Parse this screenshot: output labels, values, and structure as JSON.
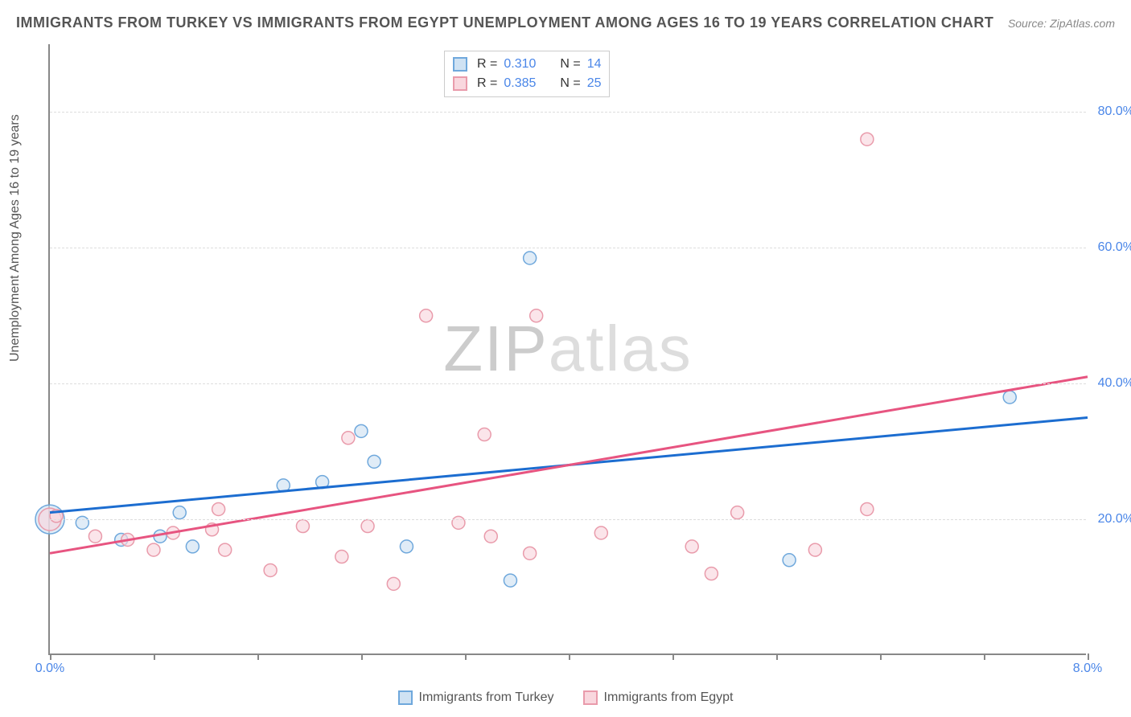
{
  "title": "IMMIGRANTS FROM TURKEY VS IMMIGRANTS FROM EGYPT UNEMPLOYMENT AMONG AGES 16 TO 19 YEARS CORRELATION CHART",
  "source": "Source: ZipAtlas.com",
  "y_axis_label": "Unemployment Among Ages 16 to 19 years",
  "watermark_a": "ZIP",
  "watermark_b": "atlas",
  "chart": {
    "type": "scatter-correlation",
    "background_color": "#ffffff",
    "grid_color": "#dddddd",
    "axis_color": "#888888",
    "tick_label_color": "#4a86e8",
    "xlim": [
      0.0,
      8.0
    ],
    "ylim": [
      0.0,
      90.0
    ],
    "x_ticks": [
      0.0,
      0.8,
      1.6,
      2.4,
      3.2,
      4.0,
      4.8,
      5.6,
      6.4,
      7.2,
      8.0
    ],
    "x_tick_labels": {
      "0": "0.0%",
      "10": "8.0%"
    },
    "y_gridlines": [
      20.0,
      40.0,
      60.0,
      80.0
    ],
    "y_tick_labels": [
      "20.0%",
      "40.0%",
      "60.0%",
      "80.0%"
    ],
    "series": [
      {
        "name": "Immigrants from Turkey",
        "color_fill": "#cfe2f3",
        "color_stroke": "#6fa8dc",
        "swatch_fill": "#cfe2f3",
        "swatch_border": "#6fa8dc",
        "line_color": "#1c6dd0",
        "r": "0.310",
        "n": "14",
        "trend": {
          "x1": 0.0,
          "y1": 21.0,
          "x2": 8.0,
          "y2": 35.0
        },
        "points": [
          {
            "x": 0.0,
            "y": 20.0,
            "r": 18
          },
          {
            "x": 0.25,
            "y": 19.5,
            "r": 8
          },
          {
            "x": 0.55,
            "y": 17.0,
            "r": 8
          },
          {
            "x": 0.85,
            "y": 17.5,
            "r": 8
          },
          {
            "x": 1.0,
            "y": 21.0,
            "r": 8
          },
          {
            "x": 1.1,
            "y": 16.0,
            "r": 8
          },
          {
            "x": 1.8,
            "y": 25.0,
            "r": 8
          },
          {
            "x": 2.1,
            "y": 25.5,
            "r": 8
          },
          {
            "x": 2.4,
            "y": 33.0,
            "r": 8
          },
          {
            "x": 2.5,
            "y": 28.5,
            "r": 8
          },
          {
            "x": 2.75,
            "y": 16.0,
            "r": 8
          },
          {
            "x": 3.55,
            "y": 11.0,
            "r": 8
          },
          {
            "x": 3.7,
            "y": 58.5,
            "r": 8
          },
          {
            "x": 5.7,
            "y": 14.0,
            "r": 8
          },
          {
            "x": 7.4,
            "y": 38.0,
            "r": 8
          }
        ]
      },
      {
        "name": "Immigrants from Egypt",
        "color_fill": "#f9d7de",
        "color_stroke": "#e99bab",
        "swatch_fill": "#f9d7de",
        "swatch_border": "#e99bab",
        "line_color": "#e75480",
        "r": "0.385",
        "n": "25",
        "trend": {
          "x1": 0.0,
          "y1": 15.0,
          "x2": 8.0,
          "y2": 41.0
        },
        "points": [
          {
            "x": 0.0,
            "y": 20.0,
            "r": 14
          },
          {
            "x": 0.05,
            "y": 20.5,
            "r": 8
          },
          {
            "x": 0.35,
            "y": 17.5,
            "r": 8
          },
          {
            "x": 0.6,
            "y": 17.0,
            "r": 8
          },
          {
            "x": 0.8,
            "y": 15.5,
            "r": 8
          },
          {
            "x": 0.95,
            "y": 18.0,
            "r": 8
          },
          {
            "x": 1.25,
            "y": 18.5,
            "r": 8
          },
          {
            "x": 1.3,
            "y": 21.5,
            "r": 8
          },
          {
            "x": 1.35,
            "y": 15.5,
            "r": 8
          },
          {
            "x": 1.7,
            "y": 12.5,
            "r": 8
          },
          {
            "x": 1.95,
            "y": 19.0,
            "r": 8
          },
          {
            "x": 2.25,
            "y": 14.5,
            "r": 8
          },
          {
            "x": 2.3,
            "y": 32.0,
            "r": 8
          },
          {
            "x": 2.45,
            "y": 19.0,
            "r": 8
          },
          {
            "x": 2.65,
            "y": 10.5,
            "r": 8
          },
          {
            "x": 2.9,
            "y": 50.0,
            "r": 8
          },
          {
            "x": 3.15,
            "y": 19.5,
            "r": 8
          },
          {
            "x": 3.35,
            "y": 32.5,
            "r": 8
          },
          {
            "x": 3.4,
            "y": 17.5,
            "r": 8
          },
          {
            "x": 3.7,
            "y": 15.0,
            "r": 8
          },
          {
            "x": 3.75,
            "y": 50.0,
            "r": 8
          },
          {
            "x": 4.25,
            "y": 18.0,
            "r": 8
          },
          {
            "x": 4.95,
            "y": 16.0,
            "r": 8
          },
          {
            "x": 5.1,
            "y": 12.0,
            "r": 8
          },
          {
            "x": 5.3,
            "y": 21.0,
            "r": 8
          },
          {
            "x": 5.9,
            "y": 15.5,
            "r": 8
          },
          {
            "x": 6.3,
            "y": 76.0,
            "r": 8
          },
          {
            "x": 6.3,
            "y": 21.5,
            "r": 8
          }
        ]
      }
    ]
  },
  "legend_bottom": [
    {
      "label": "Immigrants from Turkey",
      "fill": "#cfe2f3",
      "border": "#6fa8dc"
    },
    {
      "label": "Immigrants from Egypt",
      "fill": "#f9d7de",
      "border": "#e99bab"
    }
  ]
}
